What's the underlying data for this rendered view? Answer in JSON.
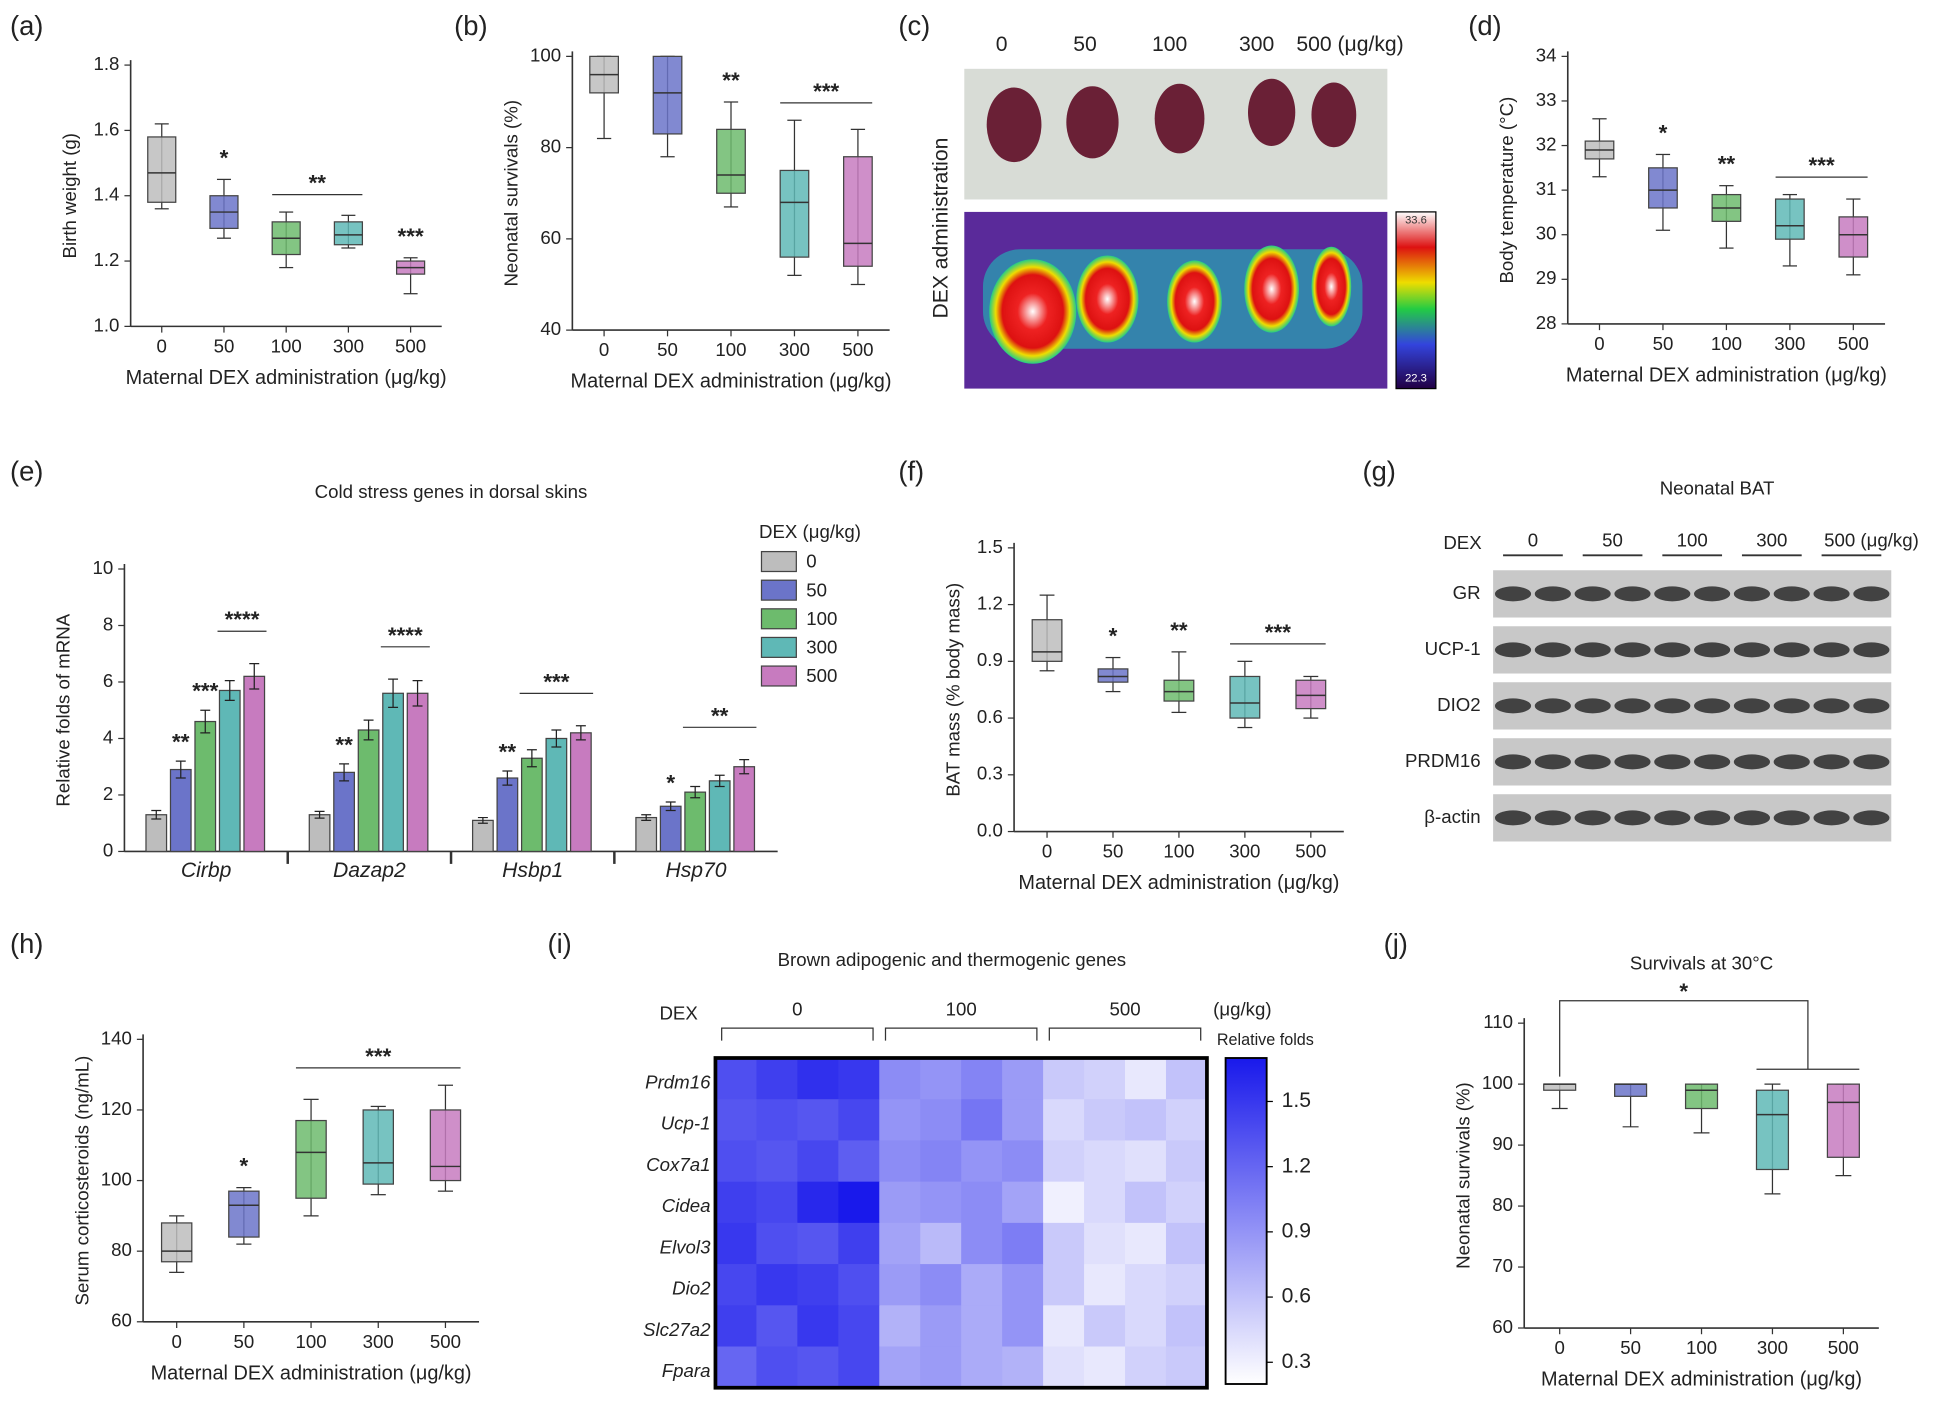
{
  "chart_data": [
    {
      "type": "box",
      "panel": "(a)",
      "ylabel": "Birth weight (g)",
      "xlabel": "Maternal DEX administration (μg/kg)",
      "categories": [
        "0",
        "50",
        "100",
        "300",
        "500"
      ],
      "colors": [
        "#bdbdbd",
        "#6b74c9",
        "#6dbb6d",
        "#5fb8b6",
        "#c77bbf"
      ],
      "min": [
        1.36,
        1.27,
        1.18,
        1.24,
        1.1
      ],
      "q1": [
        1.38,
        1.3,
        1.22,
        1.25,
        1.16
      ],
      "median": [
        1.47,
        1.35,
        1.27,
        1.28,
        1.18
      ],
      "q3": [
        1.58,
        1.4,
        1.32,
        1.32,
        1.2
      ],
      "max": [
        1.62,
        1.45,
        1.35,
        1.34,
        1.21
      ],
      "ylim": [
        1.0,
        1.8
      ],
      "yticks": [
        {
          "value": 1.0,
          "label": "1.0"
        },
        1.2,
        1.4,
        1.6,
        1.8
      ],
      "annotations": [
        "*",
        "**",
        "***"
      ]
    },
    {
      "type": "box",
      "panel": "(b)",
      "ylabel": "Neonatal survivals (%)",
      "xlabel": "Maternal DEX administration (μg/kg)",
      "categories": [
        "0",
        "50",
        "100",
        "300",
        "500"
      ],
      "colors": [
        "#bdbdbd",
        "#6b74c9",
        "#6dbb6d",
        "#5fb8b6",
        "#c77bbf"
      ],
      "min": [
        82,
        78,
        67,
        52,
        50
      ],
      "q1": [
        92,
        83,
        70,
        56,
        54
      ],
      "median": [
        96,
        92,
        74,
        68,
        59
      ],
      "q3": [
        100,
        100,
        84,
        75,
        78
      ],
      "max": [
        100,
        100,
        90,
        86,
        84
      ],
      "ylim": [
        40,
        100
      ],
      "yticks": [
        40,
        60,
        80,
        100
      ],
      "annotations": [
        "**",
        "***"
      ]
    },
    {
      "type": "image",
      "panel": "(c)",
      "labels": [
        "0",
        "50",
        "100",
        "300",
        "500 (μg/kg)"
      ],
      "ylabel": "DEX administration",
      "scale_labels": [
        "33.6",
        "22.3"
      ]
    },
    {
      "type": "box",
      "panel": "(d)",
      "ylabel": "Body temperature (°C)",
      "xlabel": "Maternal DEX administration (μg/kg)",
      "categories": [
        "0",
        "50",
        "100",
        "300",
        "500"
      ],
      "colors": [
        "#bdbdbd",
        "#6b74c9",
        "#6dbb6d",
        "#5fb8b6",
        "#c77bbf"
      ],
      "min": [
        31.3,
        30.1,
        29.7,
        29.3,
        29.1
      ],
      "q1": [
        31.7,
        30.6,
        30.3,
        29.9,
        29.5
      ],
      "median": [
        31.9,
        31.0,
        30.6,
        30.2,
        30.0
      ],
      "q3": [
        32.1,
        31.5,
        30.9,
        30.8,
        30.4
      ],
      "max": [
        32.6,
        31.8,
        31.1,
        30.9,
        30.8
      ],
      "ylim": [
        28,
        34
      ],
      "yticks": [
        28,
        29,
        30,
        31,
        32,
        33,
        34
      ],
      "annotations": [
        "*",
        "**",
        "***"
      ]
    },
    {
      "type": "bar",
      "panel": "(e)",
      "title": "Cold stress genes in dorsal skins",
      "ylabel": "Relative folds of mRNA",
      "legend_title": "DEX (μg/kg)",
      "categories": [
        "Cirbp",
        "Dazap2",
        "Hsbp1",
        "Hsp70"
      ],
      "series": [
        {
          "name": "0",
          "color": "#bdbdbd",
          "values": [
            1.3,
            1.3,
            1.1,
            1.2
          ],
          "errors": [
            0.15,
            0.12,
            0.1,
            0.1
          ]
        },
        {
          "name": "50",
          "color": "#6b74c9",
          "values": [
            2.9,
            2.8,
            2.6,
            1.6
          ],
          "errors": [
            0.3,
            0.3,
            0.25,
            0.15
          ]
        },
        {
          "name": "100",
          "color": "#6dbb6d",
          "values": [
            4.6,
            4.3,
            3.3,
            2.1
          ],
          "errors": [
            0.4,
            0.35,
            0.3,
            0.2
          ]
        },
        {
          "name": "300",
          "color": "#5fb8b6",
          "values": [
            5.7,
            5.6,
            4.0,
            2.5
          ],
          "errors": [
            0.35,
            0.5,
            0.3,
            0.2
          ]
        },
        {
          "name": "500",
          "color": "#c77bbf",
          "values": [
            6.2,
            5.6,
            4.2,
            3.0
          ],
          "errors": [
            0.45,
            0.45,
            0.25,
            0.25
          ]
        }
      ],
      "ylim": [
        0,
        10
      ],
      "yticks": [
        0,
        2,
        4,
        6,
        8,
        10
      ],
      "annotations": [
        "**",
        "***",
        "****",
        "**",
        "****",
        "**",
        "***",
        "*",
        "**"
      ]
    },
    {
      "type": "box",
      "panel": "(f)",
      "ylabel": "BAT mass (% body mass)",
      "xlabel": "Maternal DEX administration (μg/kg)",
      "categories": [
        "0",
        "50",
        "100",
        "300",
        "500"
      ],
      "colors": [
        "#bdbdbd",
        "#6b74c9",
        "#6dbb6d",
        "#5fb8b6",
        "#c77bbf"
      ],
      "min": [
        0.85,
        0.74,
        0.63,
        0.55,
        0.6
      ],
      "q1": [
        0.9,
        0.79,
        0.69,
        0.6,
        0.65
      ],
      "median": [
        0.95,
        0.82,
        0.74,
        0.68,
        0.72
      ],
      "q3": [
        1.12,
        0.86,
        0.8,
        0.82,
        0.8
      ],
      "max": [
        1.25,
        0.92,
        0.95,
        0.9,
        0.82
      ],
      "ylim": [
        0,
        1.5
      ],
      "yticks": [
        {
          "value": 0,
          "label": "0.0"
        },
        0.3,
        0.6,
        0.9,
        1.2,
        1.5
      ],
      "annotations": [
        "*",
        "**",
        "***"
      ]
    },
    {
      "type": "blot",
      "panel": "(g)",
      "title": "Neonatal BAT",
      "row_label": "DEX",
      "groups": [
        "0",
        "50",
        "100",
        "300",
        "500 (μg/kg)"
      ],
      "proteins": [
        "GR",
        "UCP-1",
        "DIO2",
        "PRDM16",
        "β-actin"
      ]
    },
    {
      "type": "box",
      "panel": "(h)",
      "ylabel": "Serum corticosteroids (ng/mL)",
      "xlabel": "Maternal DEX administration (μg/kg)",
      "categories": [
        "0",
        "50",
        "100",
        "300",
        "500"
      ],
      "colors": [
        "#bdbdbd",
        "#6b74c9",
        "#6dbb6d",
        "#5fb8b6",
        "#c77bbf"
      ],
      "min": [
        74,
        82,
        90,
        96,
        97
      ],
      "q1": [
        77,
        84,
        95,
        99,
        100
      ],
      "median": [
        80,
        93,
        108,
        105,
        104
      ],
      "q3": [
        88,
        97,
        117,
        120,
        120
      ],
      "max": [
        90,
        98,
        123,
        121,
        127
      ],
      "ylim": [
        60,
        140
      ],
      "yticks": [
        60,
        80,
        100,
        120,
        140
      ],
      "annotations": [
        "*",
        "***"
      ]
    },
    {
      "type": "heatmap",
      "panel": "(i)",
      "title": "Brown adipogenic and thermogenic genes",
      "row_label": "DEX",
      "groups": [
        "0",
        "100",
        "500"
      ],
      "unit": "(μg/kg)",
      "colorbar_label": "Relative folds",
      "rows": [
        "Prdm16",
        "Ucp-1",
        "Cox7a1",
        "Cidea",
        "Elvol3",
        "Dio2",
        "Slc27a2",
        "Fpara"
      ],
      "values": [
        [
          1.35,
          1.45,
          1.55,
          1.5,
          0.95,
          0.9,
          1.0,
          0.85,
          0.55,
          0.5,
          0.35,
          0.6
        ],
        [
          1.3,
          1.35,
          1.3,
          1.4,
          0.9,
          0.95,
          1.1,
          0.85,
          0.45,
          0.55,
          0.6,
          0.5
        ],
        [
          1.35,
          1.3,
          1.4,
          1.25,
          0.95,
          1.0,
          0.9,
          0.95,
          0.5,
          0.45,
          0.4,
          0.55
        ],
        [
          1.45,
          1.4,
          1.6,
          1.7,
          0.85,
          0.9,
          0.95,
          0.8,
          0.3,
          0.45,
          0.6,
          0.5
        ],
        [
          1.5,
          1.35,
          1.3,
          1.45,
          0.8,
          0.65,
          0.95,
          1.05,
          0.55,
          0.4,
          0.35,
          0.6
        ],
        [
          1.4,
          1.5,
          1.45,
          1.35,
          0.85,
          0.95,
          0.75,
          0.9,
          0.55,
          0.35,
          0.45,
          0.5
        ],
        [
          1.45,
          1.3,
          1.5,
          1.4,
          0.7,
          0.85,
          0.75,
          0.9,
          0.35,
          0.55,
          0.45,
          0.6
        ],
        [
          1.2,
          1.35,
          1.3,
          1.4,
          0.8,
          0.85,
          0.75,
          0.7,
          0.4,
          0.35,
          0.5,
          0.55
        ]
      ],
      "zlim": [
        0.2,
        1.7
      ],
      "colorbar_ticks": [
        0.3,
        0.6,
        0.9,
        1.2,
        1.5
      ]
    },
    {
      "type": "box",
      "panel": "(j)",
      "title": "Survivals at 30°C",
      "ylabel": "Neonatal survivals (%)",
      "xlabel": "Maternal DEX administration (μg/kg)",
      "categories": [
        "0",
        "50",
        "100",
        "300",
        "500"
      ],
      "colors": [
        "#bdbdbd",
        "#6b74c9",
        "#6dbb6d",
        "#5fb8b6",
        "#c77bbf"
      ],
      "min": [
        96,
        93,
        92,
        82,
        85
      ],
      "q1": [
        99,
        98,
        96,
        86,
        88
      ],
      "median": [
        100,
        100,
        99,
        95,
        97
      ],
      "q3": [
        100,
        100,
        100,
        99,
        100
      ],
      "max": [
        100,
        100,
        100,
        100,
        100
      ],
      "ylim": [
        60,
        110
      ],
      "yticks": [
        60,
        70,
        80,
        90,
        100,
        110
      ],
      "annotations": [
        "*"
      ]
    }
  ]
}
